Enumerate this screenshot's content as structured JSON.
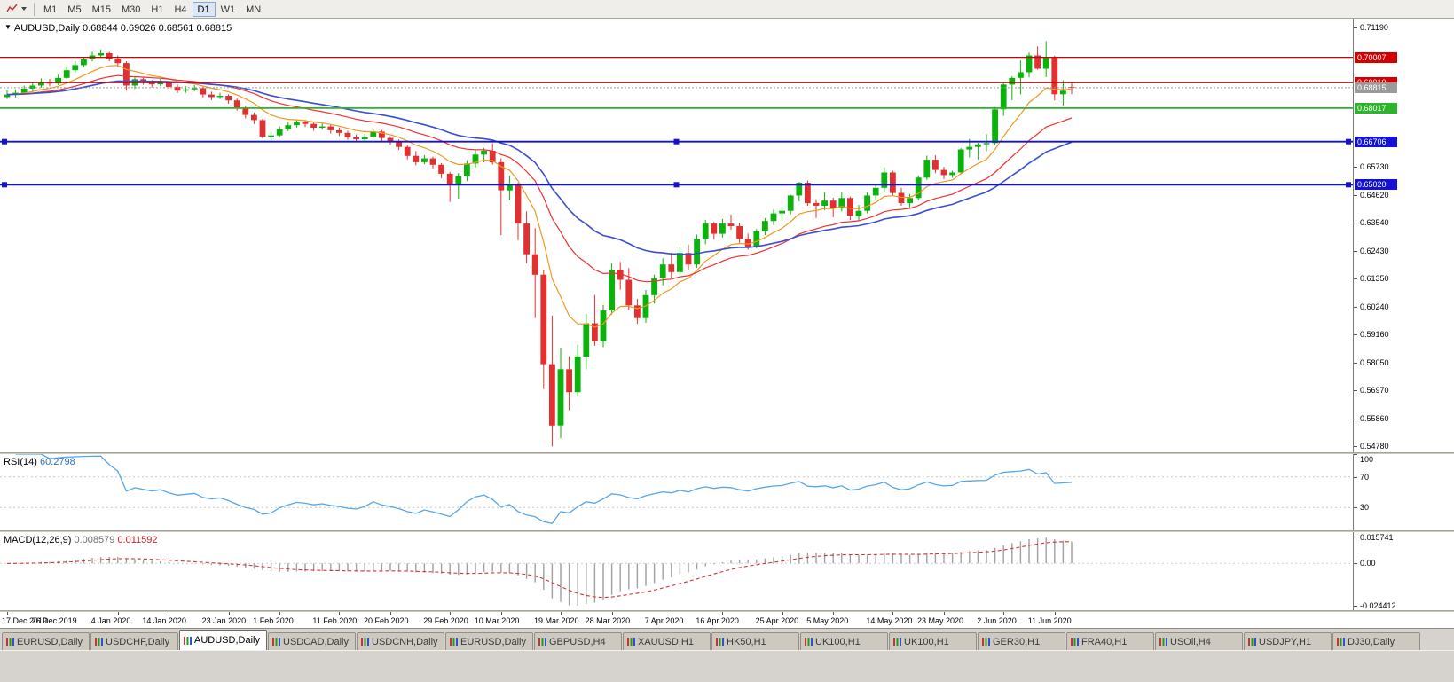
{
  "toolbar": {
    "timeframes": [
      "M1",
      "M5",
      "M15",
      "M30",
      "H1",
      "H4",
      "D1",
      "W1",
      "MN"
    ],
    "active_timeframe": "D1"
  },
  "chart_header": {
    "menu_icon": "▼",
    "symbol": "AUDUSD,Daily",
    "open": "0.68844",
    "high": "0.69026",
    "low": "0.68561",
    "close": "0.68815"
  },
  "price_axis": {
    "ticks": [
      0.7119,
      0.6573,
      0.6462,
      0.6354,
      0.6243,
      0.6135,
      0.6024,
      0.5916,
      0.5805,
      0.5697,
      0.5586,
      0.5478
    ]
  },
  "levels": [
    {
      "label": "0.70007",
      "price": 0.70007,
      "color": "#d40000",
      "width": 1.2,
      "badge": true
    },
    {
      "label": "0.69010",
      "price": 0.6901,
      "color": "#d40000",
      "width": 1.2,
      "badge": true
    },
    {
      "label": "0.68815",
      "price": 0.68815,
      "color": "#9a9a9a",
      "width": 1,
      "dash": true,
      "badge": true
    },
    {
      "label": "0.68017",
      "price": 0.68017,
      "color": "#2cb42c",
      "width": 1.8,
      "badge": true
    },
    {
      "label": "0.66706",
      "price": 0.66706,
      "color": "#1212d0",
      "width": 1.8,
      "badge": true,
      "handles": true
    },
    {
      "label": "0.65020",
      "price": 0.6502,
      "color": "#1212d0",
      "width": 1.8,
      "badge": true,
      "handles": true
    }
  ],
  "rsi_panel": {
    "name": "RSI(14)",
    "value_text": "60.2798",
    "period": 14,
    "axis_labels": [
      100,
      70,
      30
    ],
    "level_lines": [
      70,
      30
    ],
    "line_color": "#58a6e8"
  },
  "macd_panel": {
    "name": "MACD(12,26,9)",
    "main_value": "0.008579",
    "signal_value": "0.011592",
    "fast": 12,
    "slow": 26,
    "signal": 9,
    "axis_labels": [
      "0.015741",
      "0.00",
      "-0.024412"
    ],
    "axis_values": [
      0.015741,
      0,
      -0.024412
    ],
    "histogram_color": "#a0a0a0",
    "signal_color": "#d23434"
  },
  "time_axis": {
    "labels": [
      {
        "text": "17 Dec 2019",
        "bar": 0
      },
      {
        "text": "26 Dec 2019",
        "bar": 6
      },
      {
        "text": "4 Jan 2020",
        "bar": 13
      },
      {
        "text": "14 Jan 2020",
        "bar": 19
      },
      {
        "text": "23 Jan 2020",
        "bar": 26
      },
      {
        "text": "1 Feb 2020",
        "bar": 32
      },
      {
        "text": "11 Feb 2020",
        "bar": 39
      },
      {
        "text": "20 Feb 2020",
        "bar": 45
      },
      {
        "text": "29 Feb 2020",
        "bar": 52
      },
      {
        "text": "10 Mar 2020",
        "bar": 58
      },
      {
        "text": "19 Mar 2020",
        "bar": 65
      },
      {
        "text": "28 Mar 2020",
        "bar": 71
      },
      {
        "text": "7 Apr 2020",
        "bar": 78
      },
      {
        "text": "16 Apr 2020",
        "bar": 84
      },
      {
        "text": "25 Apr 2020",
        "bar": 91
      },
      {
        "text": "5 May 2020",
        "bar": 97
      },
      {
        "text": "14 May 2020",
        "bar": 104
      },
      {
        "text": "23 May 2020",
        "bar": 110
      },
      {
        "text": "2 Jun 2020",
        "bar": 117
      },
      {
        "text": "11 Jun 2020",
        "bar": 123
      }
    ]
  },
  "tabs": {
    "items": [
      "EURUSD,Daily",
      "USDCHF,Daily",
      "AUDUSD,Daily",
      "USDCAD,Daily",
      "USDCNH,Daily",
      "EURUSD,Daily",
      "GBPUSD,H4",
      "XAUUSD,H1",
      "HK50,H1",
      "UK100,H1",
      "UK100,H1",
      "GER30,H1",
      "FRA40,H1",
      "USOil,H4",
      "USDJPY,H1",
      "DJ30,Daily"
    ],
    "active_index": 2
  },
  "chart_data": {
    "type": "candlestick",
    "symbol": "AUDUSD",
    "timeframe": "Daily",
    "ohlc_format": [
      "open",
      "high",
      "low",
      "close"
    ],
    "y_range": [
      0.5455,
      0.7152
    ],
    "up_color": "#0cb20c",
    "down_color": "#e03030",
    "moving_averages": [
      {
        "period": 9,
        "color": "#f09820",
        "width": 1.2
      },
      {
        "period": 21,
        "color": "#f03030",
        "width": 1.2
      },
      {
        "period": 34,
        "color": "#3a4fd0",
        "width": 1.6
      }
    ],
    "candles": [
      [
        0.6845,
        0.6872,
        0.6838,
        0.6855
      ],
      [
        0.6855,
        0.6875,
        0.6843,
        0.6862
      ],
      [
        0.6862,
        0.689,
        0.6856,
        0.6878
      ],
      [
        0.6878,
        0.6901,
        0.6865,
        0.689
      ],
      [
        0.689,
        0.6918,
        0.6882,
        0.6905
      ],
      [
        0.6905,
        0.6916,
        0.6887,
        0.6898
      ],
      [
        0.6898,
        0.6932,
        0.6892,
        0.692
      ],
      [
        0.692,
        0.6962,
        0.6915,
        0.695
      ],
      [
        0.695,
        0.6985,
        0.694,
        0.697
      ],
      [
        0.697,
        0.7,
        0.6962,
        0.6993
      ],
      [
        0.6993,
        0.7023,
        0.6985,
        0.7008
      ],
      [
        0.7008,
        0.7032,
        0.6998,
        0.7017
      ],
      [
        0.7017,
        0.7022,
        0.6985,
        0.6996
      ],
      [
        0.6996,
        0.7008,
        0.6965,
        0.6978
      ],
      [
        0.6978,
        0.6985,
        0.687,
        0.689
      ],
      [
        0.689,
        0.6925,
        0.6877,
        0.6915
      ],
      [
        0.6915,
        0.6923,
        0.6893,
        0.6905
      ],
      [
        0.6905,
        0.6912,
        0.6882,
        0.6895
      ],
      [
        0.6895,
        0.6916,
        0.6888,
        0.6903
      ],
      [
        0.6903,
        0.6908,
        0.6876,
        0.6885
      ],
      [
        0.6885,
        0.6895,
        0.6861,
        0.687
      ],
      [
        0.687,
        0.6888,
        0.6862,
        0.6875
      ],
      [
        0.6875,
        0.6892,
        0.6868,
        0.688
      ],
      [
        0.688,
        0.6885,
        0.6844,
        0.6855
      ],
      [
        0.6855,
        0.6866,
        0.6833,
        0.6845
      ],
      [
        0.6845,
        0.6862,
        0.6837,
        0.685
      ],
      [
        0.685,
        0.6856,
        0.6819,
        0.6832
      ],
      [
        0.6832,
        0.6839,
        0.6792,
        0.6805
      ],
      [
        0.6805,
        0.6811,
        0.6762,
        0.6775
      ],
      [
        0.6775,
        0.6784,
        0.674,
        0.6755
      ],
      [
        0.6755,
        0.676,
        0.6682,
        0.669
      ],
      [
        0.669,
        0.6708,
        0.667,
        0.6695
      ],
      [
        0.6695,
        0.673,
        0.6688,
        0.672
      ],
      [
        0.672,
        0.6748,
        0.6712,
        0.6735
      ],
      [
        0.6735,
        0.6758,
        0.6726,
        0.6748
      ],
      [
        0.6748,
        0.6756,
        0.6728,
        0.674
      ],
      [
        0.674,
        0.6747,
        0.6713,
        0.6725
      ],
      [
        0.6725,
        0.6742,
        0.6718,
        0.673
      ],
      [
        0.673,
        0.6738,
        0.6702,
        0.6715
      ],
      [
        0.6715,
        0.6726,
        0.6693,
        0.6705
      ],
      [
        0.6705,
        0.6713,
        0.6678,
        0.6688
      ],
      [
        0.6688,
        0.6699,
        0.667,
        0.668
      ],
      [
        0.668,
        0.6701,
        0.6674,
        0.669
      ],
      [
        0.669,
        0.6719,
        0.6685,
        0.671
      ],
      [
        0.671,
        0.6716,
        0.6673,
        0.6685
      ],
      [
        0.6685,
        0.6692,
        0.6658,
        0.667
      ],
      [
        0.667,
        0.6679,
        0.6638,
        0.665
      ],
      [
        0.665,
        0.6656,
        0.6601,
        0.6615
      ],
      [
        0.6615,
        0.6634,
        0.6578,
        0.659
      ],
      [
        0.659,
        0.6618,
        0.6582,
        0.6605
      ],
      [
        0.6605,
        0.6612,
        0.6566,
        0.658
      ],
      [
        0.658,
        0.6587,
        0.6528,
        0.6545
      ],
      [
        0.6545,
        0.6552,
        0.6435,
        0.65
      ],
      [
        0.65,
        0.6548,
        0.6448,
        0.6535
      ],
      [
        0.6535,
        0.6598,
        0.6516,
        0.6585
      ],
      [
        0.6585,
        0.6639,
        0.6569,
        0.662
      ],
      [
        0.662,
        0.6646,
        0.6589,
        0.6635
      ],
      [
        0.6635,
        0.6664,
        0.6581,
        0.659
      ],
      [
        0.659,
        0.6605,
        0.6305,
        0.648
      ],
      [
        0.648,
        0.6537,
        0.6442,
        0.65
      ],
      [
        0.65,
        0.6509,
        0.6285,
        0.635
      ],
      [
        0.635,
        0.6398,
        0.6195,
        0.623
      ],
      [
        0.623,
        0.6332,
        0.598,
        0.615
      ],
      [
        0.615,
        0.617,
        0.5702,
        0.58
      ],
      [
        0.58,
        0.599,
        0.5478,
        0.556
      ],
      [
        0.556,
        0.5865,
        0.551,
        0.578
      ],
      [
        0.578,
        0.5831,
        0.562,
        0.569
      ],
      [
        0.569,
        0.5876,
        0.5673,
        0.583
      ],
      [
        0.583,
        0.5997,
        0.578,
        0.596
      ],
      [
        0.596,
        0.6071,
        0.5872,
        0.589
      ],
      [
        0.589,
        0.6032,
        0.5867,
        0.601
      ],
      [
        0.601,
        0.6195,
        0.5994,
        0.617
      ],
      [
        0.617,
        0.62,
        0.6091,
        0.613
      ],
      [
        0.613,
        0.6176,
        0.6011,
        0.603
      ],
      [
        0.603,
        0.6056,
        0.5958,
        0.598
      ],
      [
        0.598,
        0.609,
        0.5962,
        0.607
      ],
      [
        0.607,
        0.615,
        0.6037,
        0.6135
      ],
      [
        0.6135,
        0.6214,
        0.6108,
        0.619
      ],
      [
        0.619,
        0.6235,
        0.6138,
        0.616
      ],
      [
        0.616,
        0.6255,
        0.6142,
        0.6235
      ],
      [
        0.6235,
        0.6268,
        0.6168,
        0.619
      ],
      [
        0.619,
        0.6307,
        0.6177,
        0.629
      ],
      [
        0.629,
        0.6364,
        0.6269,
        0.635
      ],
      [
        0.635,
        0.6356,
        0.6288,
        0.631
      ],
      [
        0.631,
        0.6368,
        0.6296,
        0.635
      ],
      [
        0.635,
        0.6385,
        0.6326,
        0.634
      ],
      [
        0.634,
        0.6353,
        0.6275,
        0.629
      ],
      [
        0.629,
        0.6311,
        0.6248,
        0.626
      ],
      [
        0.626,
        0.6329,
        0.6253,
        0.632
      ],
      [
        0.632,
        0.6371,
        0.6305,
        0.636
      ],
      [
        0.636,
        0.6405,
        0.6344,
        0.639
      ],
      [
        0.639,
        0.6415,
        0.6362,
        0.64
      ],
      [
        0.64,
        0.6463,
        0.6387,
        0.646
      ],
      [
        0.646,
        0.6513,
        0.6437,
        0.651
      ],
      [
        0.651,
        0.6519,
        0.6419,
        0.643
      ],
      [
        0.643,
        0.6445,
        0.6372,
        0.642
      ],
      [
        0.642,
        0.6473,
        0.6402,
        0.644
      ],
      [
        0.644,
        0.6451,
        0.6375,
        0.641
      ],
      [
        0.641,
        0.6475,
        0.6398,
        0.645
      ],
      [
        0.645,
        0.6456,
        0.6364,
        0.638
      ],
      [
        0.638,
        0.6423,
        0.6359,
        0.64
      ],
      [
        0.64,
        0.6472,
        0.639,
        0.646
      ],
      [
        0.646,
        0.6505,
        0.6441,
        0.649
      ],
      [
        0.649,
        0.657,
        0.6475,
        0.655
      ],
      [
        0.655,
        0.6556,
        0.6461,
        0.647
      ],
      [
        0.647,
        0.649,
        0.642,
        0.643
      ],
      [
        0.643,
        0.6466,
        0.6411,
        0.645
      ],
      [
        0.645,
        0.6538,
        0.644,
        0.653
      ],
      [
        0.653,
        0.6616,
        0.6521,
        0.66
      ],
      [
        0.66,
        0.6617,
        0.6547,
        0.656
      ],
      [
        0.656,
        0.6572,
        0.6525,
        0.654
      ],
      [
        0.654,
        0.6557,
        0.6529,
        0.655
      ],
      [
        0.655,
        0.6645,
        0.6544,
        0.664
      ],
      [
        0.664,
        0.6681,
        0.6609,
        0.665
      ],
      [
        0.665,
        0.6666,
        0.6601,
        0.666
      ],
      [
        0.666,
        0.67,
        0.6634,
        0.6665
      ],
      [
        0.6665,
        0.6806,
        0.6658,
        0.6797
      ],
      [
        0.6797,
        0.69,
        0.6772,
        0.6894
      ],
      [
        0.6894,
        0.6926,
        0.6833,
        0.692
      ],
      [
        0.692,
        0.6988,
        0.6856,
        0.6942
      ],
      [
        0.6942,
        0.7019,
        0.6922,
        0.7008
      ],
      [
        0.7008,
        0.7043,
        0.6952,
        0.6956
      ],
      [
        0.6956,
        0.7064,
        0.6923,
        0.7001
      ],
      [
        0.7001,
        0.7007,
        0.6832,
        0.6856
      ],
      [
        0.6856,
        0.691,
        0.6812,
        0.687
      ],
      [
        0.68844,
        0.69026,
        0.68561,
        0.68815
      ]
    ]
  }
}
